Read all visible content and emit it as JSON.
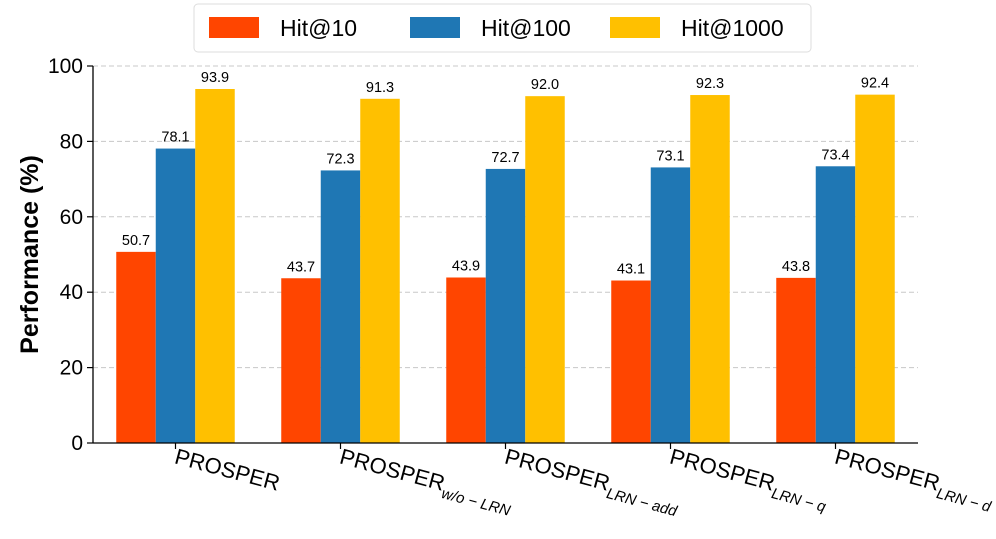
{
  "chart_data": {
    "type": "bar",
    "title": "",
    "xlabel": "",
    "ylabel": "Performance (%)",
    "ylim": [
      0,
      100
    ],
    "yticks": [
      0,
      20,
      40,
      60,
      80,
      100
    ],
    "grid": "horizontal-dashed",
    "legend_position": "top-center",
    "categories": [
      {
        "base": "PROSPER",
        "sub": ""
      },
      {
        "base": "PROSPER",
        "sub": "w/o − LRN"
      },
      {
        "base": "PROSPER",
        "sub": "LRN − add"
      },
      {
        "base": "PROSPER",
        "sub": "LRN − q"
      },
      {
        "base": "PROSPER",
        "sub": "LRN − d"
      }
    ],
    "series": [
      {
        "name": "Hit@10",
        "color": "#ff4500",
        "values": [
          50.7,
          43.7,
          43.9,
          43.1,
          43.8
        ],
        "labels": [
          "50.7",
          "43.7",
          "43.9",
          "43.1",
          "43.8"
        ]
      },
      {
        "name": "Hit@100",
        "color": "#1f77b4",
        "values": [
          78.1,
          72.3,
          72.7,
          73.1,
          73.4
        ],
        "labels": [
          "78.1",
          "72.3",
          "72.7",
          "73.1",
          "73.4"
        ]
      },
      {
        "name": "Hit@1000",
        "color": "#ffc000",
        "values": [
          93.9,
          91.3,
          92.0,
          92.3,
          92.4
        ],
        "labels": [
          "93.9",
          "91.3",
          "92.0",
          "92.3",
          "92.4"
        ]
      }
    ]
  }
}
